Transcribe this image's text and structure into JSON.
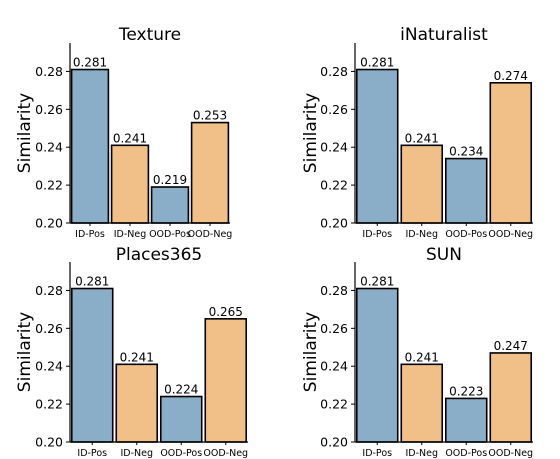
{
  "chart_data": [
    {
      "type": "bar",
      "title": "Texture",
      "ylabel": "Similarity",
      "xlabel": "",
      "categories": [
        "ID-Pos",
        "ID-Neg",
        "OOD-Pos",
        "OOD-Neg"
      ],
      "values": [
        0.281,
        0.241,
        0.219,
        0.253
      ],
      "value_labels": [
        "0.281",
        "0.241",
        "0.219",
        "0.253"
      ],
      "ylim": [
        0.2,
        0.295
      ],
      "yticks": [
        0.2,
        0.22,
        0.24,
        0.26,
        0.28
      ],
      "ytick_labels": [
        "0.20",
        "0.22",
        "0.24",
        "0.26",
        "0.28"
      ],
      "grid": false,
      "legend": "none"
    },
    {
      "type": "bar",
      "title": "iNaturalist",
      "ylabel": "Similarity",
      "xlabel": "",
      "categories": [
        "ID-Pos",
        "ID-Neg",
        "OOD-Pos",
        "OOD-Neg"
      ],
      "values": [
        0.281,
        0.241,
        0.234,
        0.274
      ],
      "value_labels": [
        "0.281",
        "0.241",
        "0.234",
        "0.274"
      ],
      "ylim": [
        0.2,
        0.295
      ],
      "yticks": [
        0.2,
        0.22,
        0.24,
        0.26,
        0.28
      ],
      "ytick_labels": [
        "0.20",
        "0.22",
        "0.24",
        "0.26",
        "0.28"
      ],
      "grid": false,
      "legend": "none"
    },
    {
      "type": "bar",
      "title": "Places365",
      "ylabel": "Similarity",
      "xlabel": "",
      "categories": [
        "ID-Pos",
        "ID-Neg",
        "OOD-Pos",
        "OOD-Neg"
      ],
      "values": [
        0.281,
        0.241,
        0.224,
        0.265
      ],
      "value_labels": [
        "0.281",
        "0.241",
        "0.224",
        "0.265"
      ],
      "ylim": [
        0.2,
        0.295
      ],
      "yticks": [
        0.2,
        0.22,
        0.24,
        0.26,
        0.28
      ],
      "ytick_labels": [
        "0.20",
        "0.22",
        "0.24",
        "0.26",
        "0.28"
      ],
      "grid": false,
      "legend": "none"
    },
    {
      "type": "bar",
      "title": "SUN",
      "ylabel": "Similarity",
      "xlabel": "",
      "categories": [
        "ID-Pos",
        "ID-Neg",
        "OOD-Pos",
        "OOD-Neg"
      ],
      "values": [
        0.281,
        0.241,
        0.223,
        0.247
      ],
      "value_labels": [
        "0.281",
        "0.241",
        "0.223",
        "0.247"
      ],
      "ylim": [
        0.2,
        0.295
      ],
      "yticks": [
        0.2,
        0.22,
        0.24,
        0.26,
        0.28
      ],
      "ytick_labels": [
        "0.20",
        "0.22",
        "0.24",
        "0.26",
        "0.28"
      ],
      "grid": false,
      "legend": "none"
    }
  ],
  "colors": {
    "positive_bar": "#8aaec8",
    "negative_bar": "#f0c088",
    "bar_edge": "#000000",
    "axis": "#000000"
  }
}
